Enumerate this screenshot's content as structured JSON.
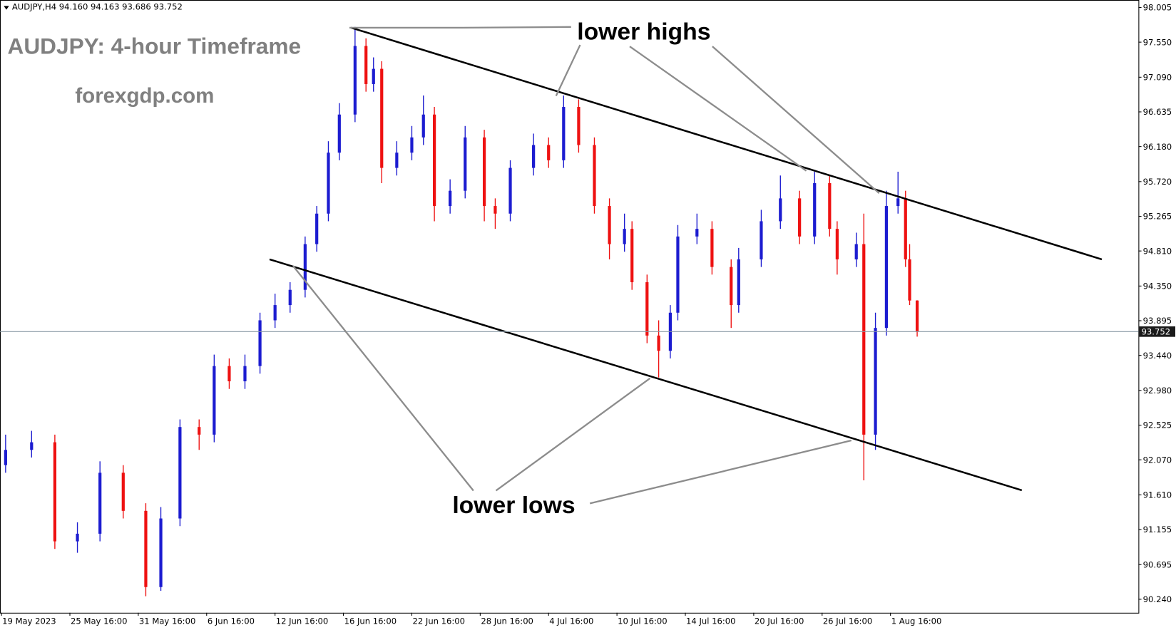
{
  "chart_data": {
    "type": "candlestick",
    "header": "AUDJPY,H4 94.160 94.163 93.686 93.752",
    "title": "AUDJPY: 4-hour Timeframe",
    "subtitle": "forexgdp.com",
    "annotations": [
      "lower highs",
      "lower lows"
    ],
    "up_color": "#1c1cd0",
    "down_color": "#ee1111",
    "x": [
      0.06,
      0.44,
      0.78,
      1.11,
      1.44,
      1.78,
      2.11,
      2.33,
      2.61,
      2.89,
      3.11,
      3.33,
      3.56,
      3.78,
      4,
      4.22,
      4.44,
      4.61,
      4.78,
      4.94,
      5.17,
      5.33,
      5.44,
      5.56,
      5.78,
      6,
      6.17,
      6.33,
      6.56,
      6.78,
      7.06,
      7.22,
      7.44,
      7.78,
      8,
      8.22,
      8.44,
      8.67,
      8.89,
      9.11,
      9.22,
      9.44,
      9.61,
      9.78,
      9.89,
      10.17,
      10.39,
      10.67,
      10.78,
      11.11,
      11.39,
      11.67,
      11.89,
      12.11,
      12.22,
      12.5,
      12.61,
      12.78,
      12.94,
      13.11,
      13.22,
      13.28,
      13.39
    ],
    "open": [
      92.0,
      92.2,
      92.3,
      91.0,
      91.1,
      91.9,
      91.4,
      90.4,
      91.3,
      92.5,
      92.4,
      93.3,
      93.1,
      93.3,
      93.9,
      94.1,
      94.3,
      94.9,
      95.3,
      96.1,
      96.6,
      97.5,
      97.0,
      97.2,
      95.9,
      96.1,
      96.3,
      96.6,
      95.4,
      95.6,
      96.3,
      95.4,
      95.3,
      95.9,
      96.2,
      96.0,
      96.7,
      96.2,
      95.4,
      94.9,
      95.1,
      94.4,
      93.7,
      93.5,
      94.0,
      95.0,
      95.1,
      94.6,
      94.1,
      94.7,
      95.2,
      95.5,
      95.0,
      95.7,
      95.1,
      94.7,
      94.9,
      92.4,
      93.8,
      95.4,
      95.5,
      94.7,
      94.16
    ],
    "high": [
      92.4,
      92.45,
      92.4,
      91.25,
      92.05,
      92.0,
      91.5,
      91.45,
      92.6,
      92.6,
      93.45,
      93.4,
      93.45,
      94.0,
      94.25,
      94.4,
      95.0,
      95.4,
      96.25,
      96.75,
      97.75,
      97.6,
      97.35,
      97.3,
      96.25,
      96.45,
      96.85,
      96.7,
      95.75,
      96.45,
      96.4,
      95.5,
      96.0,
      96.35,
      96.3,
      96.85,
      96.8,
      96.3,
      95.5,
      95.3,
      95.2,
      94.5,
      93.9,
      94.1,
      95.15,
      95.3,
      95.2,
      94.7,
      94.85,
      95.35,
      95.8,
      95.6,
      95.85,
      95.8,
      95.2,
      95.05,
      95.3,
      94.0,
      95.6,
      95.85,
      95.6,
      94.9,
      94.163
    ],
    "low": [
      91.9,
      92.1,
      90.9,
      90.85,
      91.0,
      91.3,
      90.28,
      90.35,
      91.2,
      92.2,
      92.3,
      93.0,
      93.0,
      93.2,
      93.8,
      94.0,
      94.2,
      94.8,
      95.2,
      96.0,
      96.5,
      96.9,
      96.9,
      95.7,
      95.8,
      96.0,
      96.2,
      95.2,
      95.3,
      95.5,
      95.2,
      95.1,
      95.2,
      95.8,
      95.9,
      95.9,
      96.1,
      95.3,
      94.7,
      94.8,
      94.3,
      93.6,
      93.15,
      93.4,
      93.9,
      94.9,
      94.5,
      93.8,
      94.0,
      94.6,
      95.1,
      94.9,
      94.9,
      95.0,
      94.5,
      94.6,
      91.8,
      92.2,
      93.7,
      95.3,
      94.6,
      94.1,
      93.686
    ],
    "close": [
      92.2,
      92.3,
      91.0,
      91.1,
      91.9,
      91.4,
      90.4,
      91.3,
      92.5,
      92.4,
      93.3,
      93.1,
      93.3,
      93.9,
      94.1,
      94.3,
      94.9,
      95.3,
      96.1,
      96.6,
      97.5,
      97.0,
      97.2,
      95.9,
      96.1,
      96.3,
      96.6,
      95.4,
      95.6,
      96.3,
      95.4,
      95.3,
      95.9,
      96.2,
      96.0,
      96.7,
      96.2,
      95.4,
      94.9,
      95.1,
      94.4,
      93.7,
      93.5,
      94.0,
      95.0,
      95.1,
      94.6,
      94.1,
      94.7,
      95.2,
      95.5,
      95.0,
      95.7,
      95.1,
      94.7,
      94.9,
      92.4,
      93.8,
      95.4,
      95.5,
      94.7,
      94.16,
      93.752
    ],
    "last_price": 93.752,
    "trendlines": [
      {
        "x": [
          5.11,
          16.09
        ],
        "y": [
          97.74,
          94.7
        ]
      },
      {
        "x": [
          3.92,
          14.92
        ],
        "y": [
          94.7,
          91.67
        ]
      }
    ],
    "xlim": [
      -0.022,
      16.626
    ],
    "ylim": [
      90.063,
      98.103
    ],
    "xticks": [
      {
        "value": 0,
        "label": "19 May 2023"
      },
      {
        "value": 1,
        "label": "25 May 16:00"
      },
      {
        "value": 2,
        "label": "31 May 16:00"
      },
      {
        "value": 3,
        "label": "6 Jun 16:00"
      },
      {
        "value": 4,
        "label": "12 Jun 16:00"
      },
      {
        "value": 5,
        "label": "16 Jun 16:00"
      },
      {
        "value": 6,
        "label": "22 Jun 16:00"
      },
      {
        "value": 7,
        "label": "28 Jun 16:00"
      },
      {
        "value": 8,
        "label": "4 Jul 16:00"
      },
      {
        "value": 9,
        "label": "10 Jul 16:00"
      },
      {
        "value": 10,
        "label": "14 Jul 16:00"
      },
      {
        "value": 11,
        "label": "20 Jul 16:00"
      },
      {
        "value": 12,
        "label": "26 Jul 16:00"
      },
      {
        "value": 13,
        "label": "1 Aug 16:00"
      }
    ],
    "yticks": [
      98.005,
      {
        "value": 97.55,
        "label": "97.550"
      },
      {
        "value": 97.09,
        "label": "97.090"
      },
      96.635,
      {
        "value": 96.18,
        "label": "96.180"
      },
      {
        "value": 95.72,
        "label": "95.720"
      },
      95.265,
      {
        "value": 94.81,
        "label": "94.810"
      },
      {
        "value": 94.35,
        "label": "94.350"
      },
      93.895,
      {
        "value": 93.44,
        "label": "93.440"
      },
      {
        "value": 92.98,
        "label": "92.980"
      },
      92.525,
      {
        "value": 92.07,
        "label": "92.070"
      },
      {
        "value": 91.61,
        "label": "91.610"
      },
      91.155,
      90.695,
      {
        "value": 90.24,
        "label": "90.240"
      }
    ]
  }
}
